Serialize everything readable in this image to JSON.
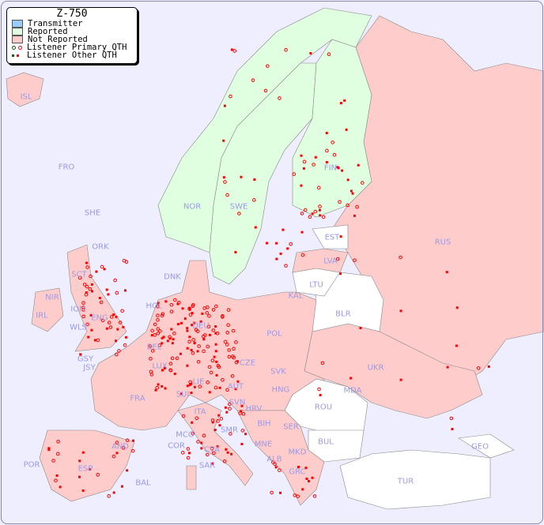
{
  "legend": {
    "title": "Z-750",
    "items": [
      {
        "label": "Transmitter",
        "color": "#99ccff"
      },
      {
        "label": "Reported",
        "color": "#e0ffe0"
      },
      {
        "label": "Not Reported",
        "color": "#ffcccc"
      },
      {
        "label": "Listener Primary QTH",
        "colors": [
          "#006600",
          "#ff0000"
        ]
      },
      {
        "label": "Listener Other QTH",
        "colors": [
          "#006600",
          "#ff0000"
        ]
      }
    ]
  },
  "colors": {
    "sea": "#eeeeff",
    "reported": "#e0ffe0",
    "not_reported": "#ffcccc",
    "no_data": "#ffffff",
    "label": "#9a9ae8",
    "marker": "#ff0000"
  },
  "countries": {
    "reported": [
      "NOR",
      "SWE",
      "FIN"
    ],
    "not_reported": [
      "ISL",
      "FRO",
      "SHE",
      "ORK",
      "EST",
      "LVA",
      "KAL",
      "RUS",
      "UKR",
      "DNK",
      "HOL",
      "DEU",
      "POL",
      "BEL",
      "LUX",
      "CZE",
      "SVK",
      "HNG",
      "AUT",
      "LIE",
      "SUI",
      "FRA",
      "GSY",
      "JSY",
      "IRL",
      "IOM",
      "WLS",
      "ENG",
      "NIR",
      "SCT",
      "SVN",
      "HRV",
      "BIH",
      "SER",
      "MNE",
      "ALB",
      "MKD",
      "GRC",
      "ITA",
      "SMR",
      "CVA",
      "MCO",
      "COR",
      "SAR",
      "AND",
      "POR",
      "ESP",
      "BAL"
    ],
    "no_data": [
      "LTU",
      "BLR",
      "MDA",
      "ROU",
      "BUL",
      "TUR",
      "GEO"
    ]
  },
  "labels": [
    "ISL",
    "FRO",
    "SHE",
    "ORK",
    "NOR",
    "SWE",
    "FIN",
    "EST",
    "LVA",
    "LTU",
    "KAL",
    "RUS",
    "BLR",
    "UKR",
    "DNK",
    "HOL",
    "DEU",
    "POL",
    "BEL",
    "LUX",
    "CZE",
    "SVK",
    "HNG",
    "AUT",
    "LIE",
    "SUI",
    "FRA",
    "GSY",
    "JSY",
    "IRL",
    "IOM",
    "WLS",
    "NIR",
    "SCT",
    "MDA",
    "ROU",
    "SVN",
    "HRV",
    "BIH",
    "SER",
    "MNE",
    "ALB",
    "MKD",
    "BUL",
    "GRC",
    "TUR",
    "GEO",
    "ITA",
    "SMR",
    "MCO",
    "COR",
    "CVA",
    "SAR",
    "AND",
    "POR",
    "ESP",
    "BAL"
  ]
}
